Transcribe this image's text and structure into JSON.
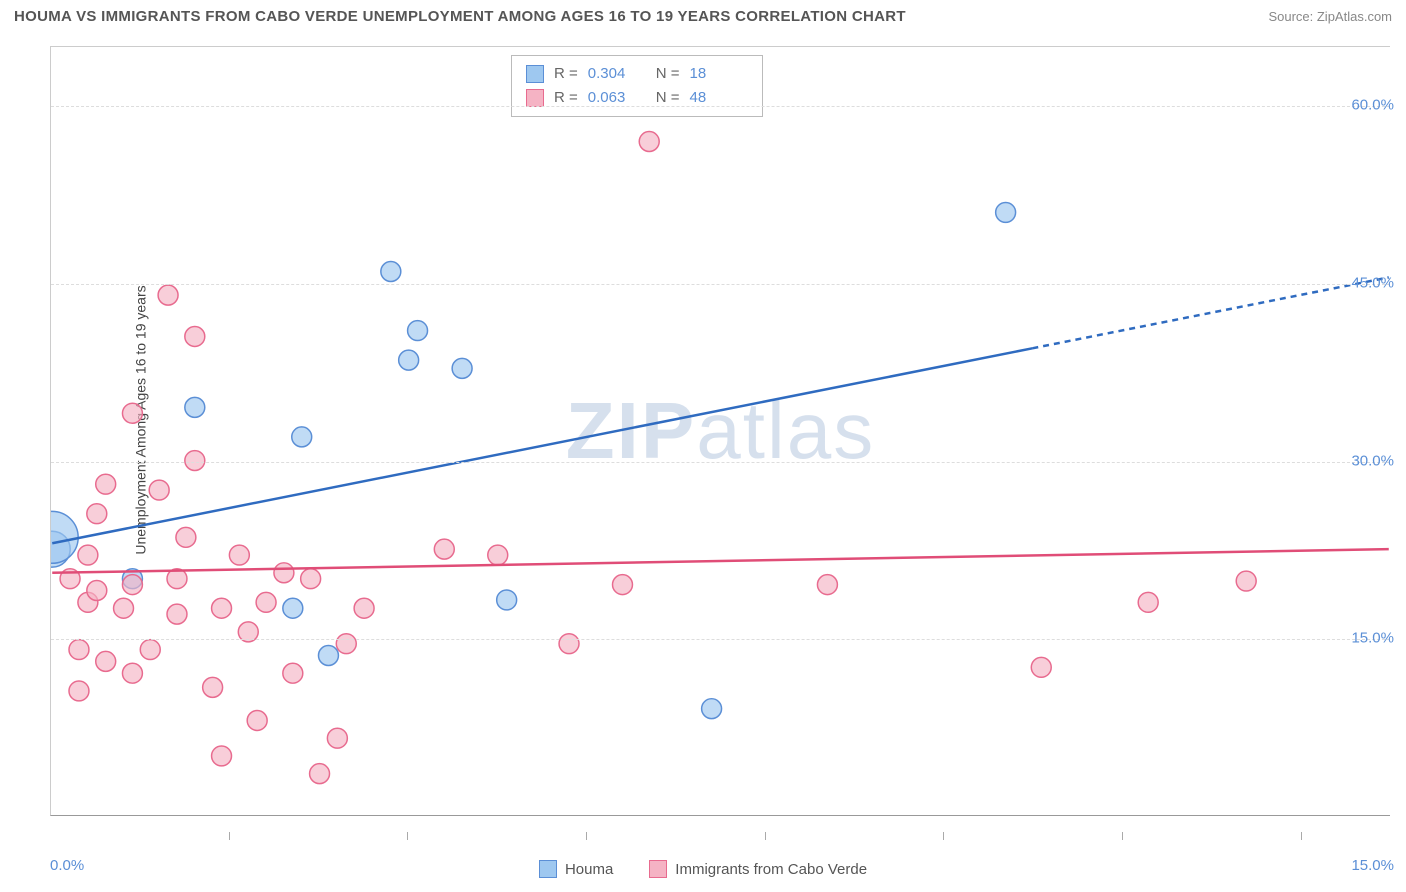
{
  "title": "HOUMA VS IMMIGRANTS FROM CABO VERDE UNEMPLOYMENT AMONG AGES 16 TO 19 YEARS CORRELATION CHART",
  "source": "Source: ZipAtlas.com",
  "watermark": "ZIPatlas",
  "y_axis_title": "Unemployment Among Ages 16 to 19 years",
  "chart": {
    "type": "scatter",
    "xlim": [
      0,
      15
    ],
    "ylim": [
      0,
      65
    ],
    "y_gridlines": [
      15,
      30,
      45,
      60
    ],
    "y_tick_labels": [
      "15.0%",
      "30.0%",
      "45.0%",
      "60.0%"
    ],
    "x_ticks": [
      0,
      2,
      4,
      6,
      8,
      10,
      12,
      14,
      15
    ],
    "x_tick_labels": {
      "0": "0.0%",
      "15": "15.0%"
    },
    "background_color": "#ffffff",
    "grid_color": "#dddddd",
    "axis_color": "#cccccc",
    "series": [
      {
        "name": "Houma",
        "color_fill": "#9ec8f0",
        "color_stroke": "#5b8fd6",
        "marker_radius": 10,
        "marker_opacity": 0.65,
        "stats": {
          "R": "0.304",
          "N": "18"
        },
        "trend": {
          "x1": 0.0,
          "y1": 23.0,
          "x2": 15.0,
          "y2": 45.5,
          "dash_from_x": 11.0,
          "color": "#2f6bc0",
          "width": 2.5
        },
        "points": [
          {
            "x": 0.0,
            "y": 22.5,
            "r": 18
          },
          {
            "x": 0.0,
            "y": 23.5,
            "r": 26
          },
          {
            "x": 1.6,
            "y": 34.5
          },
          {
            "x": 0.9,
            "y": 20.0
          },
          {
            "x": 2.8,
            "y": 32.0
          },
          {
            "x": 2.7,
            "y": 17.5
          },
          {
            "x": 3.1,
            "y": 13.5
          },
          {
            "x": 3.8,
            "y": 46.0
          },
          {
            "x": 4.0,
            "y": 38.5
          },
          {
            "x": 4.1,
            "y": 41.0
          },
          {
            "x": 4.6,
            "y": 37.8
          },
          {
            "x": 5.1,
            "y": 18.2
          },
          {
            "x": 7.4,
            "y": 9.0
          },
          {
            "x": 10.7,
            "y": 51.0
          }
        ]
      },
      {
        "name": "Immigrants from Cabo Verde",
        "color_fill": "#f5b3c4",
        "color_stroke": "#e86b8f",
        "marker_radius": 10,
        "marker_opacity": 0.65,
        "stats": {
          "R": "0.063",
          "N": "48"
        },
        "trend": {
          "x1": 0.0,
          "y1": 20.5,
          "x2": 15.0,
          "y2": 22.5,
          "color": "#e04d77",
          "width": 2.5
        },
        "points": [
          {
            "x": 0.2,
            "y": 20.0
          },
          {
            "x": 0.3,
            "y": 10.5
          },
          {
            "x": 0.3,
            "y": 14.0
          },
          {
            "x": 0.4,
            "y": 18.0
          },
          {
            "x": 0.4,
            "y": 22.0
          },
          {
            "x": 0.5,
            "y": 19.0
          },
          {
            "x": 0.5,
            "y": 25.5
          },
          {
            "x": 0.6,
            "y": 13.0
          },
          {
            "x": 0.6,
            "y": 28.0
          },
          {
            "x": 0.8,
            "y": 17.5
          },
          {
            "x": 0.9,
            "y": 34.0
          },
          {
            "x": 0.9,
            "y": 12.0
          },
          {
            "x": 0.9,
            "y": 19.5
          },
          {
            "x": 1.1,
            "y": 14.0
          },
          {
            "x": 1.2,
            "y": 27.5
          },
          {
            "x": 1.3,
            "y": 44.0
          },
          {
            "x": 1.4,
            "y": 20.0
          },
          {
            "x": 1.4,
            "y": 17.0
          },
          {
            "x": 1.5,
            "y": 23.5
          },
          {
            "x": 1.6,
            "y": 30.0
          },
          {
            "x": 1.6,
            "y": 40.5
          },
          {
            "x": 1.8,
            "y": 10.8
          },
          {
            "x": 1.9,
            "y": 5.0
          },
          {
            "x": 1.9,
            "y": 17.5
          },
          {
            "x": 2.1,
            "y": 22.0
          },
          {
            "x": 2.2,
            "y": 15.5
          },
          {
            "x": 2.3,
            "y": 8.0
          },
          {
            "x": 2.4,
            "y": 18.0
          },
          {
            "x": 2.6,
            "y": 20.5
          },
          {
            "x": 2.7,
            "y": 12.0
          },
          {
            "x": 2.9,
            "y": 20.0
          },
          {
            "x": 3.0,
            "y": 3.5
          },
          {
            "x": 3.2,
            "y": 6.5
          },
          {
            "x": 3.3,
            "y": 14.5
          },
          {
            "x": 3.5,
            "y": 17.5
          },
          {
            "x": 4.4,
            "y": 22.5
          },
          {
            "x": 5.0,
            "y": 22.0
          },
          {
            "x": 5.8,
            "y": 14.5
          },
          {
            "x": 6.4,
            "y": 19.5
          },
          {
            "x": 6.7,
            "y": 57.0
          },
          {
            "x": 8.7,
            "y": 19.5
          },
          {
            "x": 11.1,
            "y": 12.5
          },
          {
            "x": 12.3,
            "y": 18.0
          },
          {
            "x": 13.4,
            "y": 19.8
          }
        ]
      }
    ]
  },
  "legend": {
    "series1": {
      "label": "Houma",
      "fill": "#9ec8f0",
      "stroke": "#5b8fd6"
    },
    "series2": {
      "label": "Immigrants from Cabo Verde",
      "fill": "#f5b3c4",
      "stroke": "#e86b8f"
    }
  },
  "stats_labels": {
    "R": "R =",
    "N": "N ="
  }
}
